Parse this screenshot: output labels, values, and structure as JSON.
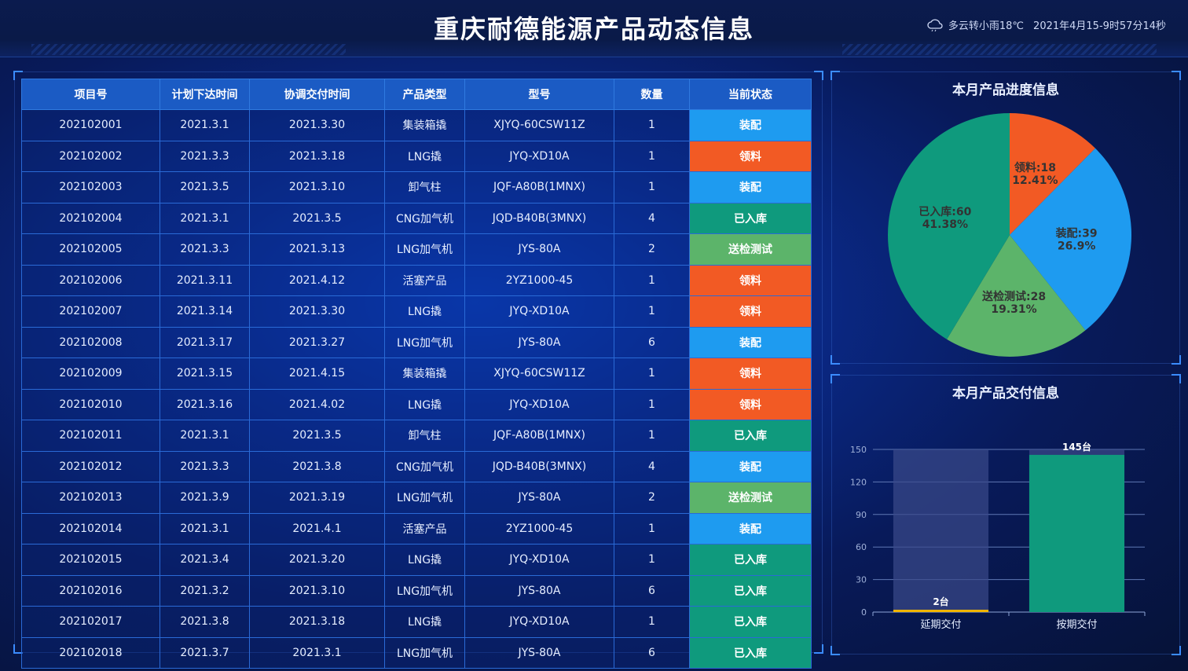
{
  "header": {
    "title": "重庆耐德能源产品动态信息",
    "weather": "多云转小雨18℃",
    "datetime": "2021年4月15-9时57分14秒"
  },
  "table": {
    "columns": [
      "项目号",
      "计划下达时间",
      "协调交付时间",
      "产品类型",
      "型号",
      "数量",
      "当前状态"
    ],
    "rows": [
      [
        "202102001",
        "2021.3.1",
        "2021.3.30",
        "集装箱撬",
        "XJYQ-60CSW11Z",
        "1",
        "装配"
      ],
      [
        "202102002",
        "2021.3.3",
        "2021.3.18",
        "LNG撬",
        "JYQ-XD10A",
        "1",
        "领料"
      ],
      [
        "202102003",
        "2021.3.5",
        "2021.3.10",
        "卸气柱",
        "JQF-A80B(1MNX)",
        "1",
        "装配"
      ],
      [
        "202102004",
        "2021.3.1",
        "2021.3.5",
        "CNG加气机",
        "JQD-B40B(3MNX)",
        "4",
        "已入库"
      ],
      [
        "202102005",
        "2021.3.3",
        "2021.3.13",
        "LNG加气机",
        "JYS-80A",
        "2",
        "送检测试"
      ],
      [
        "202102006",
        "2021.3.11",
        "2021.4.12",
        "活塞产品",
        "2YZ1000-45",
        "1",
        "领料"
      ],
      [
        "202102007",
        "2021.3.14",
        "2021.3.30",
        "LNG撬",
        "JYQ-XD10A",
        "1",
        "领料"
      ],
      [
        "202102008",
        "2021.3.17",
        "2021.3.27",
        "LNG加气机",
        "JYS-80A",
        "6",
        "装配"
      ],
      [
        "202102009",
        "2021.3.15",
        "2021.4.15",
        "集装箱撬",
        "XJYQ-60CSW11Z",
        "1",
        "领料"
      ],
      [
        "202102010",
        "2021.3.16",
        "2021.4.02",
        "LNG撬",
        "JYQ-XD10A",
        "1",
        "领料"
      ],
      [
        "202102011",
        "2021.3.1",
        "2021.3.5",
        "卸气柱",
        "JQF-A80B(1MNX)",
        "1",
        "已入库"
      ],
      [
        "202102012",
        "2021.3.3",
        "2021.3.8",
        "CNG加气机",
        "JQD-B40B(3MNX)",
        "4",
        "装配"
      ],
      [
        "202102013",
        "2021.3.9",
        "2021.3.19",
        "LNG加气机",
        "JYS-80A",
        "2",
        "送检测试"
      ],
      [
        "202102014",
        "2021.3.1",
        "2021.4.1",
        "活塞产品",
        "2YZ1000-45",
        "1",
        "装配"
      ],
      [
        "202102015",
        "2021.3.4",
        "2021.3.20",
        "LNG撬",
        "JYQ-XD10A",
        "1",
        "已入库"
      ],
      [
        "202102016",
        "2021.3.2",
        "2021.3.10",
        "LNG加气机",
        "JYS-80A",
        "6",
        "已入库"
      ],
      [
        "202102017",
        "2021.3.8",
        "2021.3.18",
        "LNG撬",
        "JYQ-XD10A",
        "1",
        "已入库"
      ],
      [
        "202102018",
        "2021.3.7",
        "2021.3.1",
        "LNG加气机",
        "JYS-80A",
        "6",
        "已入库"
      ]
    ],
    "status_colors": {
      "装配": "#1e9bf0",
      "领料": "#f25a24",
      "已入库": "#0f9a7d",
      "送检测试": "#5cb46a"
    }
  },
  "chart_data": [
    {
      "type": "pie",
      "title": "本月产品进度信息",
      "slices": [
        {
          "name": "领料",
          "value": 18,
          "percent": "12.41%",
          "color": "#f25a24"
        },
        {
          "name": "装配",
          "value": 39,
          "percent": "26.9%",
          "color": "#1e9bf0"
        },
        {
          "name": "送检测试",
          "value": 28,
          "percent": "19.31%",
          "color": "#5cb46a"
        },
        {
          "name": "已入库",
          "value": 60,
          "percent": "41.38%",
          "color": "#0f9a7d"
        }
      ]
    },
    {
      "type": "bar",
      "title": "本月产品交付信息",
      "categories": [
        "延期交付",
        "按期交付"
      ],
      "values": [
        2,
        145
      ],
      "data_labels": [
        "2台",
        "145台"
      ],
      "ylim": [
        0,
        150
      ],
      "yticks": [
        "0",
        "30",
        "60",
        "90",
        "120",
        "150"
      ],
      "colors": [
        "#f0b400",
        "#0f9a7d"
      ],
      "background_bar_color": "#3a4a8a",
      "grid": true
    }
  ]
}
